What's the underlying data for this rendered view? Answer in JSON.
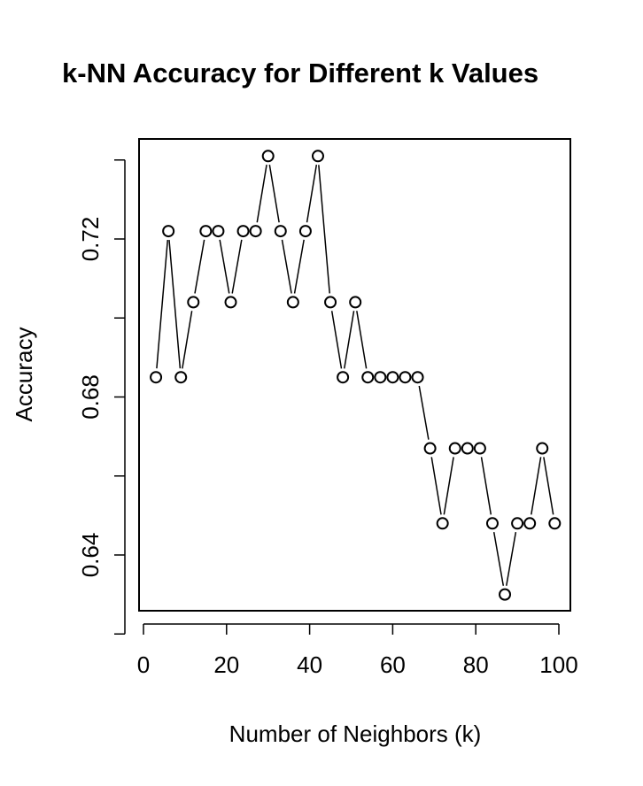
{
  "chart_data": {
    "type": "line",
    "title": "k-NN Accuracy for Different k Values",
    "xlabel": "Number of Neighbors (k)",
    "ylabel": "Accuracy",
    "x_ticks": [
      "0",
      "20",
      "40",
      "60",
      "80",
      "100"
    ],
    "y_ticks": [
      "0.64",
      "0.68",
      "0.72"
    ],
    "y_minor_ticks": [
      0.62,
      0.64,
      0.66,
      0.68,
      0.7,
      0.72,
      0.74
    ],
    "xlim": [
      0,
      100
    ],
    "ylim": [
      0.6185,
      0.743
    ],
    "grid": false,
    "marker": "open-circle",
    "line_style": "overplotted-both",
    "series": [
      {
        "x": [
          3,
          6,
          9,
          12,
          15,
          18,
          21,
          24,
          27,
          30,
          33,
          36,
          39,
          42,
          45,
          48,
          51,
          54,
          57,
          60,
          63,
          66,
          69,
          72,
          75,
          78,
          81,
          84,
          87,
          90,
          93,
          96,
          99
        ],
        "values": [
          0.685,
          0.722,
          0.685,
          0.704,
          0.722,
          0.722,
          0.704,
          0.722,
          0.722,
          0.741,
          0.722,
          0.704,
          0.722,
          0.741,
          0.704,
          0.685,
          0.704,
          0.685,
          0.685,
          0.685,
          0.685,
          0.685,
          0.667,
          0.648,
          0.667,
          0.667,
          0.667,
          0.648,
          0.63,
          0.648,
          0.648,
          0.667,
          0.648
        ]
      }
    ]
  }
}
